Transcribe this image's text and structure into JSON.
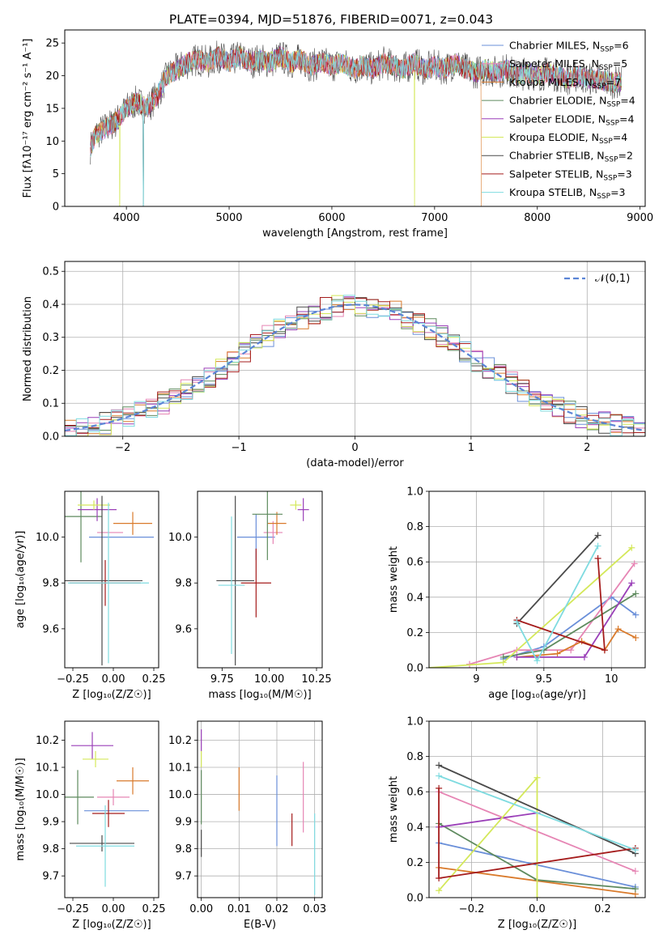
{
  "chart_data": [
    {
      "type": "line",
      "title": "PLATE=0394, MJD=51876, FIBERID=0071, z=0.043",
      "xlabel": "wavelength [Angstrom, rest frame]",
      "ylabel": "Flux [fλ10⁻¹⁷ erg cm⁻² s⁻¹ A⁻¹]",
      "xlim": [
        3400,
        9050
      ],
      "ylim": [
        0,
        27
      ],
      "xticks": [
        4000,
        5000,
        6000,
        7000,
        8000,
        9000
      ],
      "yticks": [
        0,
        5,
        10,
        15,
        20,
        25
      ],
      "legend_position": "top-right",
      "series": [
        {
          "name": "Chabrier MILES, N_SSP=6",
          "color": "#6a8fd9"
        },
        {
          "name": "Salpeter MILES, N_SSP=5",
          "color": "#e685b4"
        },
        {
          "name": "Kroupa MILES, N_SSP=7",
          "color": "#d97a2b"
        },
        {
          "name": "Chabrier ELODIE, N_SSP=4",
          "color": "#5e8a5e"
        },
        {
          "name": "Salpeter ELODIE, N_SSP=4",
          "color": "#9a3fb8"
        },
        {
          "name": "Kroupa ELODIE, N_SSP=4",
          "color": "#d4e85a"
        },
        {
          "name": "Chabrier STELIB, N_SSP=2",
          "color": "#4a4a4a"
        },
        {
          "name": "Salpeter STELIB, N_SSP=3",
          "color": "#a51c1c"
        },
        {
          "name": "Kroupa STELIB, N_SSP=3",
          "color": "#7fdbe0"
        }
      ],
      "data_curve": {
        "x": [
          3650,
          3700,
          3800,
          3900,
          4000,
          4100,
          4200,
          4300,
          4400,
          4500,
          4600,
          4700,
          4800,
          4900,
          5000,
          5100,
          5200,
          5300,
          5400,
          5500,
          5600,
          5700,
          5800,
          5900,
          6000,
          6100,
          6200,
          6300,
          6400,
          6500,
          6600,
          6700,
          6800,
          6900,
          7000,
          7100,
          7200,
          7300,
          7400,
          7500,
          7600,
          7700,
          7800,
          7900,
          8000,
          8100,
          8200,
          8300,
          8400,
          8500,
          8600,
          8700,
          8800
        ],
        "y": [
          9,
          11,
          12,
          13,
          15,
          16,
          15,
          17,
          20,
          21,
          22,
          22.5,
          22,
          23,
          22,
          23,
          22,
          22.5,
          22,
          23,
          22,
          22.5,
          21.5,
          22,
          21.5,
          22,
          21,
          21.5,
          21,
          22,
          21.5,
          21,
          22,
          21,
          21.5,
          21,
          22,
          21,
          20.5,
          21,
          20.5,
          21,
          20,
          20.5,
          20,
          20.5,
          20,
          19.5,
          20,
          19.5,
          19.5,
          19,
          19
        ]
      }
    },
    {
      "type": "bar",
      "xlabel": "(data-model)/error",
      "ylabel": "Normed distribution",
      "xlim": [
        -2.5,
        2.5
      ],
      "ylim": [
        0,
        0.53
      ],
      "xticks": [
        -2,
        -1,
        0,
        1,
        2
      ],
      "yticks": [
        0.0,
        0.1,
        0.2,
        0.3,
        0.4,
        0.5
      ],
      "legend": "𝒩(0,1)",
      "legend_position": "top-right",
      "bin_width": 0.1
    },
    {
      "type": "scatter",
      "xlabel": "Z [log₁₀(Z/Z☉)]",
      "ylabel": "age  [log₁₀(age/yr)]",
      "xlim": [
        -0.3,
        0.28
      ],
      "ylim": [
        9.43,
        10.2
      ],
      "xticks": [
        -0.25,
        0.0,
        0.25
      ],
      "xticklabels": [
        "−0.25",
        "0.00",
        "0.25"
      ],
      "yticks": [
        9.6,
        9.8,
        10.0
      ],
      "points": [
        {
          "x": 0.05,
          "y": 10.0,
          "xerr": 0.2,
          "yerr": 0.0,
          "color": "#6a8fd9"
        },
        {
          "x": -0.02,
          "y": 10.02,
          "xerr": 0.08,
          "yerr": 0.0,
          "color": "#e685b4"
        },
        {
          "x": 0.12,
          "y": 10.06,
          "xerr": 0.12,
          "yerr": 0.05,
          "color": "#d97a2b"
        },
        {
          "x": -0.2,
          "y": 10.09,
          "xerr": 0.13,
          "yerr": 0.2,
          "color": "#5e8a5e"
        },
        {
          "x": -0.1,
          "y": 10.12,
          "xerr": 0.12,
          "yerr": 0.05,
          "color": "#9a3fb8"
        },
        {
          "x": -0.12,
          "y": 10.14,
          "xerr": 0.1,
          "yerr": 0.02,
          "color": "#d4e85a"
        },
        {
          "x": -0.07,
          "y": 9.81,
          "xerr": 0.25,
          "yerr": 0.37,
          "color": "#4a4a4a"
        },
        {
          "x": -0.05,
          "y": 9.8,
          "xerr": 0.22,
          "yerr": 0.1,
          "color": "#a51c1c"
        },
        {
          "x": -0.03,
          "y": 9.8,
          "xerr": 0.25,
          "yerr": 0.35,
          "color": "#7fdbe0"
        }
      ]
    },
    {
      "type": "scatter",
      "xlabel": "mass [log₁₀(M/M☉)]",
      "xlim": [
        9.62,
        10.28
      ],
      "ylim": [
        9.43,
        10.2
      ],
      "xticks": [
        9.75,
        10.0,
        10.25
      ],
      "xticklabels": [
        "9.75",
        "10.00",
        "10.25"
      ],
      "yticks": [
        9.6,
        9.8,
        10.0
      ],
      "points": [
        {
          "x": 9.93,
          "y": 10.0,
          "xerr": 0.1,
          "yerr": 0.1,
          "color": "#6a8fd9"
        },
        {
          "x": 10.02,
          "y": 10.02,
          "xerr": 0.05,
          "yerr": 0.05,
          "color": "#e685b4"
        },
        {
          "x": 10.04,
          "y": 10.06,
          "xerr": 0.05,
          "yerr": 0.05,
          "color": "#d97a2b"
        },
        {
          "x": 9.99,
          "y": 10.1,
          "xerr": 0.08,
          "yerr": 0.2,
          "color": "#5e8a5e"
        },
        {
          "x": 10.18,
          "y": 10.12,
          "xerr": 0.03,
          "yerr": 0.05,
          "color": "#9a3fb8"
        },
        {
          "x": 10.14,
          "y": 10.14,
          "xerr": 0.03,
          "yerr": 0.02,
          "color": "#d4e85a"
        },
        {
          "x": 9.82,
          "y": 9.81,
          "xerr": 0.1,
          "yerr": 0.37,
          "color": "#4a4a4a"
        },
        {
          "x": 9.93,
          "y": 9.8,
          "xerr": 0.08,
          "yerr": 0.15,
          "color": "#a51c1c"
        },
        {
          "x": 9.8,
          "y": 9.79,
          "xerr": 0.07,
          "yerr": 0.3,
          "color": "#7fdbe0"
        }
      ]
    },
    {
      "type": "line",
      "xlabel": "age  [log₁₀(age/yr)]",
      "ylabel": "mass weight",
      "xlim": [
        8.65,
        10.25
      ],
      "ylim": [
        0,
        1.0
      ],
      "xticks": [
        9.0,
        9.5,
        10.0
      ],
      "yticks": [
        0.0,
        0.2,
        0.4,
        0.6,
        0.8,
        1.0
      ],
      "series": [
        {
          "color": "#6a8fd9",
          "x": [
            9.2,
            9.5,
            10.0,
            10.18
          ],
          "y": [
            0.05,
            0.12,
            0.4,
            0.3
          ]
        },
        {
          "color": "#e685b4",
          "x": [
            8.95,
            9.3,
            9.7,
            10.17
          ],
          "y": [
            0.02,
            0.1,
            0.1,
            0.59
          ]
        },
        {
          "color": "#d97a2b",
          "x": [
            9.3,
            9.6,
            9.78,
            9.95,
            10.05,
            10.18
          ],
          "y": [
            0.06,
            0.08,
            0.15,
            0.1,
            0.22,
            0.17
          ]
        },
        {
          "color": "#5e8a5e",
          "x": [
            9.2,
            9.5,
            10.18
          ],
          "y": [
            0.06,
            0.1,
            0.42
          ]
        },
        {
          "color": "#9a3fb8",
          "x": [
            9.3,
            9.8,
            10.15
          ],
          "y": [
            0.06,
            0.06,
            0.48
          ]
        },
        {
          "color": "#d4e85a",
          "x": [
            8.65,
            9.2,
            10.15
          ],
          "y": [
            0.0,
            0.03,
            0.68
          ]
        },
        {
          "color": "#4a4a4a",
          "x": [
            9.3,
            9.9
          ],
          "y": [
            0.25,
            0.75
          ]
        },
        {
          "color": "#a51c1c",
          "x": [
            9.3,
            9.95,
            9.9
          ],
          "y": [
            0.27,
            0.1,
            0.62
          ]
        },
        {
          "color": "#7fdbe0",
          "x": [
            9.3,
            9.45,
            9.9
          ],
          "y": [
            0.26,
            0.04,
            0.69
          ]
        }
      ]
    },
    {
      "type": "scatter",
      "xlabel": "Z [log₁₀(Z/Z☉)]",
      "ylabel": "mass [log₁₀(M/M☉)]",
      "xlim": [
        -0.3,
        0.28
      ],
      "ylim": [
        9.62,
        10.27
      ],
      "xticks": [
        -0.25,
        0.0,
        0.25
      ],
      "xticklabels": [
        "−0.25",
        "0.00",
        "0.25"
      ],
      "yticks": [
        9.7,
        9.8,
        9.9,
        10.0,
        10.1,
        10.2
      ],
      "points": [
        {
          "x": 0.02,
          "y": 9.94,
          "xerr": 0.2,
          "yerr": 0.0,
          "color": "#6a8fd9"
        },
        {
          "x": 0.0,
          "y": 9.99,
          "xerr": 0.1,
          "yerr": 0.03,
          "color": "#e685b4"
        },
        {
          "x": 0.12,
          "y": 10.05,
          "xerr": 0.1,
          "yerr": 0.05,
          "color": "#d97a2b"
        },
        {
          "x": -0.22,
          "y": 9.99,
          "xerr": 0.1,
          "yerr": 0.1,
          "color": "#5e8a5e"
        },
        {
          "x": -0.13,
          "y": 10.18,
          "xerr": 0.13,
          "yerr": 0.05,
          "color": "#9a3fb8"
        },
        {
          "x": -0.11,
          "y": 10.13,
          "xerr": 0.08,
          "yerr": 0.03,
          "color": "#d4e85a"
        },
        {
          "x": -0.07,
          "y": 9.82,
          "xerr": 0.2,
          "yerr": 0.03,
          "color": "#4a4a4a"
        },
        {
          "x": -0.03,
          "y": 9.93,
          "xerr": 0.1,
          "yerr": 0.05,
          "color": "#a51c1c"
        },
        {
          "x": -0.05,
          "y": 9.81,
          "xerr": 0.18,
          "yerr": 0.15,
          "color": "#7fdbe0"
        }
      ]
    },
    {
      "type": "scatter",
      "xlabel": "E(B-V)",
      "xlim": [
        -0.001,
        0.032
      ],
      "ylim": [
        9.62,
        10.27
      ],
      "xticks": [
        0.0,
        0.01,
        0.02,
        0.03
      ],
      "xticklabels": [
        "0.00",
        "0.01",
        "0.02",
        "0.03"
      ],
      "yticks": [
        9.7,
        9.8,
        9.9,
        10.0,
        10.1,
        10.2
      ],
      "points": [
        {
          "x": 0.02,
          "y": 9.94,
          "yerr": 0.13,
          "color": "#6a8fd9"
        },
        {
          "x": 0.027,
          "y": 9.99,
          "yerr": 0.13,
          "color": "#e685b4"
        },
        {
          "x": 0.01,
          "y": 10.02,
          "yerr": 0.08,
          "color": "#d97a2b"
        },
        {
          "x": 0.0,
          "y": 9.99,
          "yerr": 0.1,
          "color": "#5e8a5e"
        },
        {
          "x": 0.0,
          "y": 10.2,
          "yerr": 0.04,
          "color": "#9a3fb8"
        },
        {
          "x": 0.0,
          "y": 10.13,
          "yerr": 0.03,
          "color": "#d4e85a"
        },
        {
          "x": 0.0,
          "y": 9.82,
          "yerr": 0.05,
          "color": "#4a4a4a"
        },
        {
          "x": 0.024,
          "y": 9.87,
          "yerr": 0.06,
          "color": "#a51c1c"
        },
        {
          "x": 0.03,
          "y": 9.78,
          "yerr": 0.15,
          "color": "#7fdbe0"
        }
      ]
    },
    {
      "type": "line",
      "xlabel": "Z [log₁₀(Z/Z☉)]",
      "ylabel": "mass weight",
      "xlim": [
        -0.33,
        0.33
      ],
      "ylim": [
        0,
        1.0
      ],
      "xticks": [
        -0.2,
        0.0,
        0.2
      ],
      "xticklabels": [
        "−0.2",
        "0.0",
        "0.2"
      ],
      "yticks": [
        0.0,
        0.2,
        0.4,
        0.6,
        0.8,
        1.0
      ],
      "series": [
        {
          "color": "#6a8fd9",
          "x": [
            -0.3,
            0.3
          ],
          "y": [
            0.31,
            0.06
          ]
        },
        {
          "color": "#e685b4",
          "x": [
            -0.3,
            0.3
          ],
          "y": [
            0.6,
            0.15
          ]
        },
        {
          "color": "#d97a2b",
          "x": [
            -0.3,
            0.3
          ],
          "y": [
            0.17,
            0.02
          ]
        },
        {
          "color": "#5e8a5e",
          "x": [
            -0.3,
            0.0,
            0.3
          ],
          "y": [
            0.42,
            0.1,
            0.05
          ]
        },
        {
          "color": "#9a3fb8",
          "x": [
            -0.3,
            0.0
          ],
          "y": [
            0.4,
            0.48
          ]
        },
        {
          "color": "#d4e85a",
          "x": [
            -0.3,
            0.0,
            0.0
          ],
          "y": [
            0.04,
            0.68,
            0.0
          ]
        },
        {
          "color": "#4a4a4a",
          "x": [
            -0.3,
            0.3
          ],
          "y": [
            0.75,
            0.25
          ]
        },
        {
          "color": "#a51c1c",
          "x": [
            -0.3,
            -0.3,
            0.3
          ],
          "y": [
            0.62,
            0.11,
            0.28
          ]
        },
        {
          "color": "#7fdbe0",
          "x": [
            -0.3,
            0.3
          ],
          "y": [
            0.69,
            0.27
          ]
        }
      ]
    }
  ]
}
